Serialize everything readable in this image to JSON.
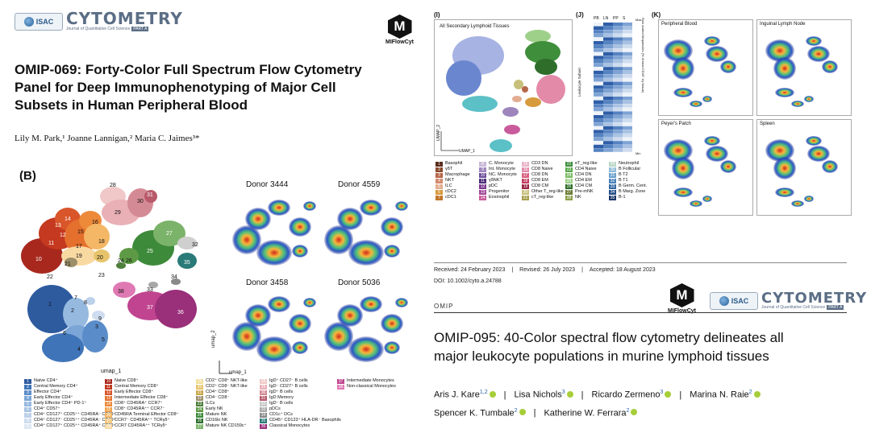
{
  "left": {
    "logo": {
      "badge": "ISAC",
      "wordmark": "CYTOMETRY",
      "subline": "Journal of Quantitative Cell Science",
      "part": "PART A"
    },
    "mflow_label": "MIFlowCyt",
    "title_lines": [
      "OMIP-069: Forty-Color Full Spectrum Flow Cytometry",
      "Panel for Deep Immunophenotyping of Major Cell",
      "Subsets in Human Peripheral Blood"
    ],
    "authors": "Lily M. Park,¹ Joanne Lannigan,² Maria C. Jaimes³*",
    "panel_label": "(B)",
    "umap_label": "umap_1",
    "umap_axis_x": "umap_1",
    "umap_axis_y": "umap_2",
    "donors": [
      "Donor 3444",
      "Donor 4559",
      "Donor 3458",
      "Donor 5036"
    ],
    "cluster_numbers": [
      "1",
      "2",
      "3",
      "4",
      "5",
      "6",
      "7",
      "8",
      "9",
      "10",
      "11",
      "12",
      "13",
      "14",
      "15",
      "16",
      "17",
      "18",
      "19",
      "20",
      "21",
      "22",
      "23",
      "24",
      "25",
      "26",
      "27",
      "28",
      "29",
      "30",
      "31",
      "32",
      "33",
      "34",
      "35",
      "36",
      "37",
      "38"
    ],
    "legend_col1": [
      {
        "n": "1",
        "label": "Naive CD4⁺",
        "color": "#2e5a9e"
      },
      {
        "n": "2",
        "label": "Central Memory CD4⁺",
        "color": "#3f74b8"
      },
      {
        "n": "3",
        "label": "Effector CD4⁺",
        "color": "#5a8cc9"
      },
      {
        "n": "4",
        "label": "Early Effector CD4⁺",
        "color": "#7aa5d6"
      },
      {
        "n": "5",
        "label": "Early Effector CD4⁺ PD-1⁺",
        "color": "#96b9df"
      },
      {
        "n": "6",
        "label": "CD4⁺ CD57⁺",
        "color": "#a9c4e4"
      },
      {
        "n": "7",
        "label": "CD4⁺ CD127⁺ CD25⁺⁺ CD45RA⁻ CD39⁻",
        "color": "#bcd1ea"
      },
      {
        "n": "8",
        "label": "CD4⁺ CD127⁻ CD25⁺⁺ CD45RA⁻ CD39⁺",
        "color": "#cddcee"
      },
      {
        "n": "9",
        "label": "CD4⁺ CD127⁺ CD25⁺⁺ CD45RA⁺ CD39⁻",
        "color": "#dde7f3"
      }
    ],
    "legend_col2": [
      {
        "n": "10",
        "label": "Naive CD8⁺",
        "color": "#a8281e"
      },
      {
        "n": "11",
        "label": "Central Memory CD8⁺",
        "color": "#c4391f"
      },
      {
        "n": "12",
        "label": "Early Effector CD8⁺",
        "color": "#d9552a"
      },
      {
        "n": "13",
        "label": "Intermediate Effector CD8⁺",
        "color": "#e56f2c"
      },
      {
        "n": "14",
        "label": "CD8⁺ CD45RA⁺ CCR7⁺",
        "color": "#ec8a3a"
      },
      {
        "n": "15",
        "label": "CD8⁺ CD45RA⁺⁺ CCR7⁻",
        "color": "#f0a24c"
      },
      {
        "n": "16",
        "label": "CD45RA Terminal Effector CD8⁺",
        "color": "#f3b766"
      },
      {
        "n": "17",
        "label": "CCR7⁻ CD45RA⁺⁺ TCRγδ⁺",
        "color": "#f6ca84"
      },
      {
        "n": "18",
        "label": "CCR7 CD45RA⁺⁺ TCRγδ⁺",
        "color": "#f8d9a2"
      }
    ],
    "legend_col3": [
      {
        "n": "19",
        "label": "CD2⁺ CD8⁺ NKT-like",
        "color": "#f1de9a"
      },
      {
        "n": "20",
        "label": "CD2⁺ CD8⁻ NKT-like",
        "color": "#e7c36b"
      },
      {
        "n": "21",
        "label": "CD4⁺ CD8⁺",
        "color": "#c9a84b"
      },
      {
        "n": "22",
        "label": "CD4⁻ CD8⁻",
        "color": "#9c8f6a"
      },
      {
        "n": "23",
        "label": "ILCs",
        "color": "#4f7f3d"
      },
      {
        "n": "24",
        "label": "Early NK",
        "color": "#5e9a45"
      },
      {
        "n": "25",
        "label": "Mature NK",
        "color": "#3d8a3a"
      },
      {
        "n": "26",
        "label": "CD16lo NK",
        "color": "#2f6e2e"
      },
      {
        "n": "27",
        "label": "Mature NK CD159c⁺",
        "color": "#7cb36a"
      }
    ],
    "legend_col4": [
      {
        "n": "28",
        "label": "IgD⁺ CD27⁻ B cells",
        "color": "#f0c8c8"
      },
      {
        "n": "29",
        "label": "IgD⁻ CD27⁺ B cells",
        "color": "#e9b0b5"
      },
      {
        "n": "30",
        "label": "IgD⁺ B cells",
        "color": "#d48a94"
      },
      {
        "n": "31",
        "label": "IgD Memory",
        "color": "#b85a6a"
      },
      {
        "n": "32",
        "label": "IgD⁻ B cells",
        "color": "#c9c9c9"
      },
      {
        "n": "33",
        "label": "pDCs",
        "color": "#a7a7a7"
      },
      {
        "n": "34",
        "label": "CD1c⁺ DCs",
        "color": "#8a8a8a"
      },
      {
        "n": "35",
        "label": "CD45⁺ CD123⁺ HLA-DR⁻ Basophils",
        "color": "#2a7a78"
      },
      {
        "n": "36",
        "label": "Classical Monocytes",
        "color": "#9a2f7a"
      }
    ],
    "legend_col5": [
      {
        "n": "37",
        "label": "Intermediate Monocytes",
        "color": "#c0448f"
      },
      {
        "n": "38",
        "label": "Non-classical Monocytes",
        "color": "#df79b3"
      }
    ]
  },
  "right": {
    "panel_i": "(I)",
    "panel_j": "(J)",
    "panel_k": "(K)",
    "umap_title": "All Secondary Lymphoid Tissues",
    "umap_axis_x": "UMAP_1",
    "umap_axis_y": "UMAP_2",
    "heat_cols": [
      "PB",
      "LN",
      "PP",
      "S"
    ],
    "heat_side_label": "Leukocyte Subset",
    "heat_right_label": "Row scaled frequencies (% of total CD45⁺ by tissue)",
    "heat_right_bottom": "Min",
    "heat_right_top": "Max",
    "k_panels": [
      "Peripheral Blood",
      "Inguinal Lymph Node",
      "Peyer's Patch",
      "Spleen"
    ],
    "legend_groups": [
      [
        {
          "n": "1",
          "label": "Basophil",
          "color": "#5b2b1c"
        },
        {
          "n": "2",
          "label": "γδT",
          "color": "#8a4a2c"
        },
        {
          "n": "3",
          "label": "Macrophage",
          "color": "#b7664a"
        },
        {
          "n": "4",
          "label": "NKT",
          "color": "#d38a6c"
        },
        {
          "n": "5",
          "label": "ILC",
          "color": "#e3ac90"
        },
        {
          "n": "6",
          "label": "cDC2",
          "color": "#d79a3d"
        },
        {
          "n": "7",
          "label": "cDC1",
          "color": "#c2762b"
        }
      ],
      [
        {
          "n": "8",
          "label": "C. Monocyte",
          "color": "#c9b9d8"
        },
        {
          "n": "9",
          "label": "Int. Monocyte",
          "color": "#9e86bd"
        },
        {
          "n": "10",
          "label": "NC. Monocyte",
          "color": "#6d4f9b"
        },
        {
          "n": "11",
          "label": "γδNKT",
          "color": "#4d2f7a"
        },
        {
          "n": "12",
          "label": "pDC",
          "color": "#7b3a8f"
        },
        {
          "n": "13",
          "label": "Progenitor",
          "color": "#a34b9b"
        },
        {
          "n": "14",
          "label": "Eosinophil",
          "color": "#c95b9c"
        }
      ],
      [
        {
          "n": "15",
          "label": "CD3 DN",
          "color": "#e9b1c8"
        },
        {
          "n": "16",
          "label": "CD8 Naive",
          "color": "#e48aa9"
        },
        {
          "n": "17",
          "label": "CD8 DN",
          "color": "#d9607f"
        },
        {
          "n": "18",
          "label": "CD8 EM",
          "color": "#c33d5f"
        },
        {
          "n": "19",
          "label": "CD8 CM",
          "color": "#9b2443"
        },
        {
          "n": "20",
          "label": "Other T_reg-like",
          "color": "#c7c07a"
        },
        {
          "n": "21",
          "label": "cT_reg-like",
          "color": "#a89f4e"
        }
      ],
      [
        {
          "n": "22",
          "label": "eT_reg-like",
          "color": "#3f8e3b"
        },
        {
          "n": "23",
          "label": "CD4 Naive",
          "color": "#5aa84c"
        },
        {
          "n": "24",
          "label": "CD4 DN",
          "color": "#7ebd68"
        },
        {
          "n": "25",
          "label": "CD4 EM",
          "color": "#9fd08a"
        },
        {
          "n": "26",
          "label": "CD4 CM",
          "color": "#2f6d2b"
        },
        {
          "n": "27",
          "label": "Pre-mNK",
          "color": "#6b7e35"
        },
        {
          "n": "28",
          "label": "NK",
          "color": "#8ea14a"
        }
      ],
      [
        {
          "n": "29",
          "label": "Neutrophil",
          "color": "#b9d7c5"
        },
        {
          "n": "30",
          "label": "B Follicular",
          "color": "#8fbbd8"
        },
        {
          "n": "31",
          "label": "B T2",
          "color": "#6aa0cc"
        },
        {
          "n": "32",
          "label": "B T1",
          "color": "#4a82bb"
        },
        {
          "n": "33",
          "label": "B Germ. Cent.",
          "color": "#3568a4"
        },
        {
          "n": "34",
          "label": "B Marg. Zone",
          "color": "#264f88"
        },
        {
          "n": "35",
          "label": "B-1",
          "color": "#1b386a"
        }
      ]
    ],
    "received": "Received: 24 February 2023",
    "revised": "Revised: 26 July 2023",
    "accepted": "Accepted: 18 August 2023",
    "doi": "DOI: 10.1002/cyto.a.24788",
    "omip_tag": "OMIP",
    "mflow_label": "MIFlowCyt",
    "logo": {
      "badge": "ISAC",
      "wordmark": "CYTOMETRY",
      "subline": "Journal of Quantitative Cell Science",
      "part": "PART A"
    },
    "title_lines": [
      "OMIP-095: 40-Color spectral flow cytometry delineates all",
      "major leukocyte populations in murine lymphoid tissues"
    ],
    "authors_line1": [
      "Aris J. Kare",
      "Lisa Nichols",
      "Ricardo Zermeno",
      "Marina N. Raie"
    ],
    "authors_line1_sup": [
      "1,2",
      "3",
      "3",
      "2"
    ],
    "authors_line2": [
      "Spencer K. Tumbale",
      "Katherine W. Ferrara"
    ],
    "authors_line2_sup": [
      "2",
      "2"
    ],
    "separator": "|"
  }
}
